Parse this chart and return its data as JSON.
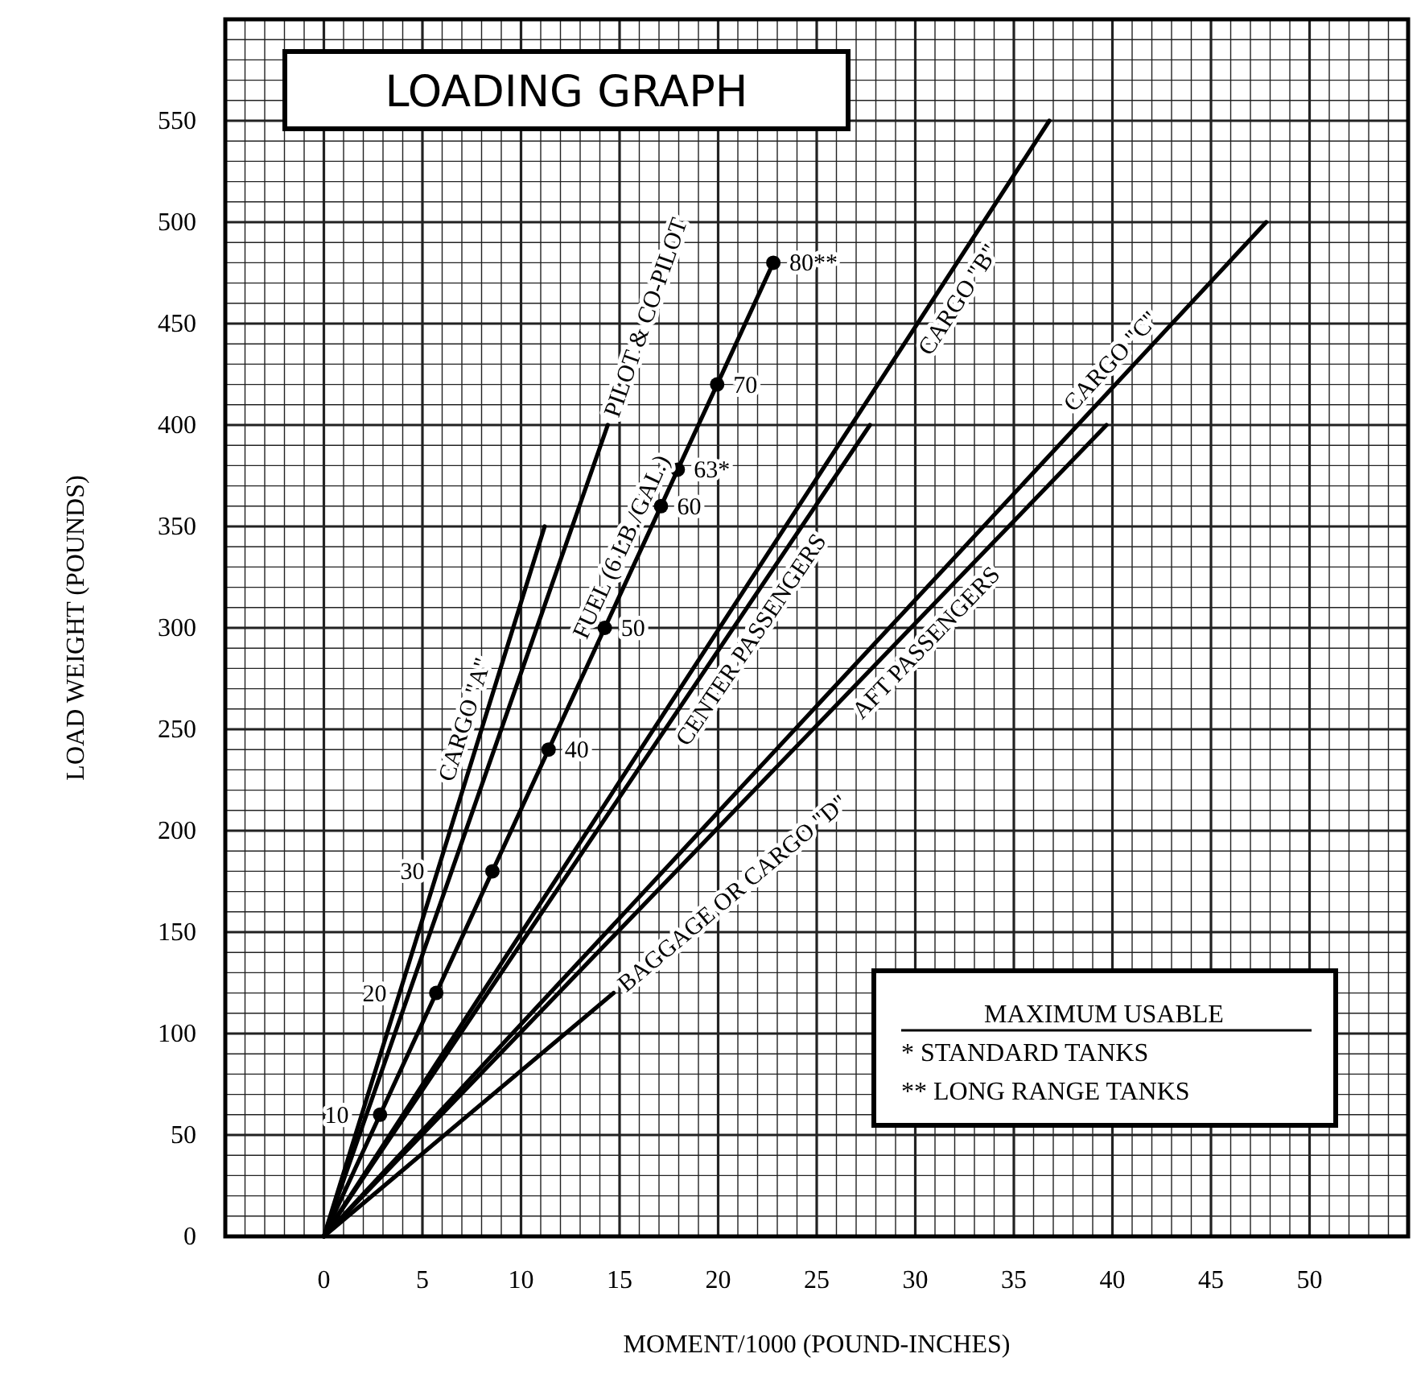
{
  "chart_data": {
    "type": "line",
    "title": "LOADING GRAPH",
    "xlabel": "MOMENT/1000 (POUND-INCHES)",
    "ylabel": "LOAD WEIGHT (POUNDS)",
    "xlim": [
      -5,
      55
    ],
    "ylim": [
      0,
      600
    ],
    "xticks": [
      0,
      5,
      10,
      15,
      20,
      25,
      30,
      35,
      40,
      45,
      50
    ],
    "yticks": [
      0,
      50,
      100,
      150,
      200,
      250,
      300,
      350,
      400,
      450,
      500,
      550
    ],
    "grid": true,
    "legend": false,
    "line_style": "solid",
    "series": [
      {
        "name": "CARGO \"A\"",
        "color": "#000000",
        "x": [
          0,
          11.2
        ],
        "values": [
          0,
          350
        ]
      },
      {
        "name": "PILOT & CO-PILOT",
        "color": "#000000",
        "x": [
          0,
          14.4
        ],
        "values": [
          0,
          400
        ]
      },
      {
        "name": "FUEL (6 LB./GAL.)",
        "color": "#000000",
        "marker": "circle",
        "x": [
          0,
          2.85,
          5.7,
          8.55,
          11.4,
          14.25,
          17.1,
          17.95,
          19.95,
          22.8
        ],
        "values": [
          0,
          60,
          120,
          180,
          240,
          300,
          360,
          378,
          420,
          480
        ]
      },
      {
        "name": "CENTER PASSENGERS",
        "color": "#000000",
        "x": [
          0,
          27.7
        ],
        "values": [
          0,
          400
        ]
      },
      {
        "name": "CARGO \"B\"",
        "color": "#000000",
        "x": [
          0,
          36.8
        ],
        "values": [
          0,
          550
        ]
      },
      {
        "name": "CARGO \"C\"",
        "color": "#000000",
        "x": [
          0,
          47.8
        ],
        "values": [
          0,
          500
        ]
      },
      {
        "name": "AFT PASSENGERS",
        "color": "#000000",
        "x": [
          0,
          39.7
        ],
        "values": [
          0,
          400
        ]
      },
      {
        "name": "BAGGAGE OR CARGO \"D\"",
        "color": "#000000",
        "x": [
          0,
          14.7
        ],
        "values": [
          0,
          120
        ]
      }
    ],
    "annotations": [
      "MAXIMUM USABLE",
      "* STANDARD TANKS",
      "** LONG RANGE TANKS",
      {
        "text": "10",
        "x": 2.85,
        "y": 60
      },
      {
        "text": "20",
        "x": 5.7,
        "y": 120
      },
      {
        "text": "30",
        "x": 8.55,
        "y": 180
      },
      {
        "text": "40",
        "x": 11.4,
        "y": 240
      },
      {
        "text": "50",
        "x": 14.25,
        "y": 300
      },
      {
        "text": "60",
        "x": 17.1,
        "y": 360
      },
      {
        "text": "63*",
        "x": 17.95,
        "y": 378
      },
      {
        "text": "70",
        "x": 19.95,
        "y": 420
      },
      {
        "text": "80**",
        "x": 22.8,
        "y": 480
      }
    ]
  }
}
